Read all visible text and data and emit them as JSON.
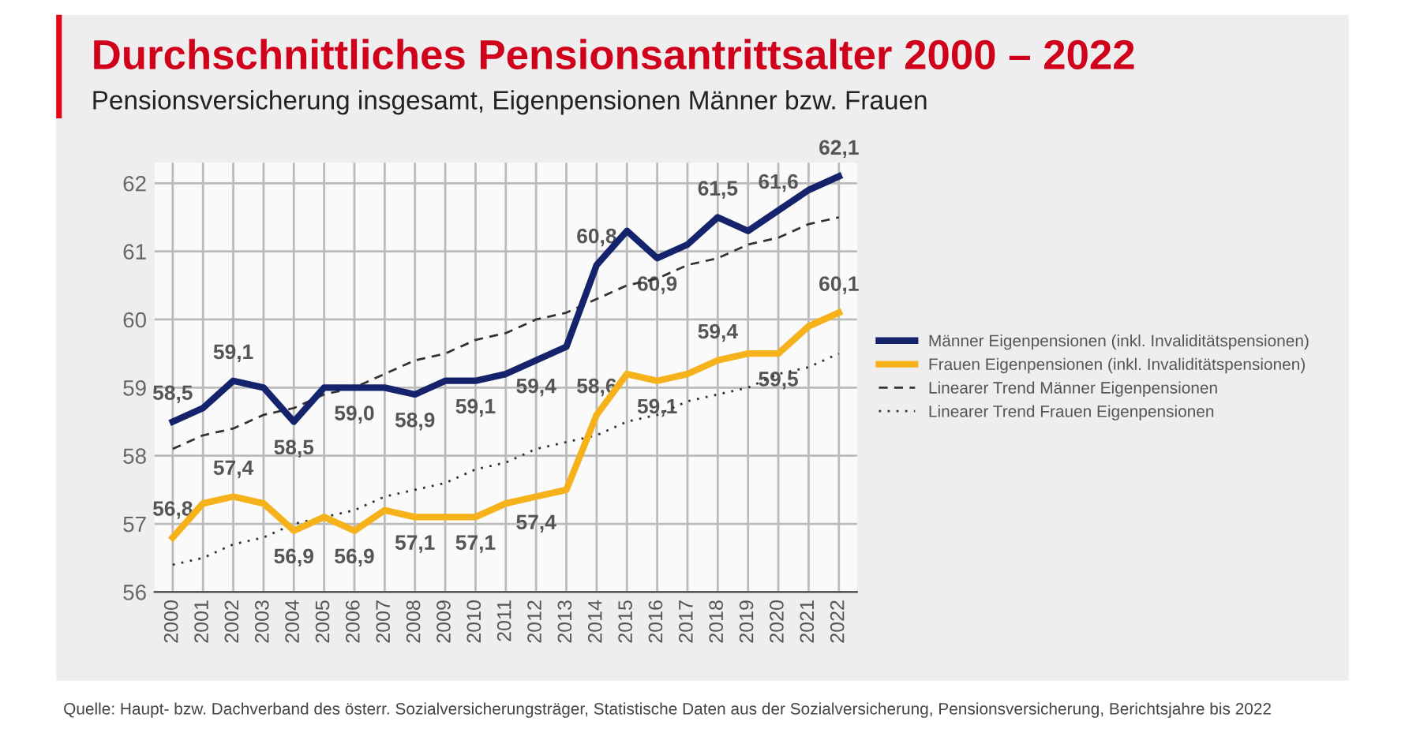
{
  "chart_data": {
    "type": "line",
    "title": "Durchschnittliches Pensionsantrittsalter 2000 – 2022",
    "subtitle": "Pensionsversicherung insgesamt, Eigenpensionen Männer bzw. Frauen",
    "categories": [
      "2000",
      "2001",
      "2002",
      "2003",
      "2004",
      "2005",
      "2006",
      "2007",
      "2008",
      "2009",
      "2010",
      "2011",
      "2012",
      "2013",
      "2014",
      "2015",
      "2016",
      "2017",
      "2018",
      "2019",
      "2020",
      "2021",
      "2022"
    ],
    "series": [
      {
        "name": "Männer Eigenpensionen (inkl. Invaliditätspensionen)",
        "color": "#14236b",
        "line_style": "solid",
        "values": [
          58.5,
          58.7,
          59.1,
          59.0,
          58.5,
          59.0,
          59.0,
          59.0,
          58.9,
          59.1,
          59.1,
          59.2,
          59.4,
          59.6,
          60.8,
          61.3,
          60.9,
          61.1,
          61.5,
          61.3,
          61.6,
          61.9,
          62.1
        ],
        "value_labels": [
          "58,5",
          null,
          "59,1",
          null,
          "58,5",
          null,
          "59,0",
          null,
          "58,9",
          null,
          "59,1",
          null,
          "59,4",
          null,
          "60,8",
          null,
          "60,9",
          null,
          "61,5",
          null,
          "61,6",
          null,
          "62,1"
        ]
      },
      {
        "name": "Frauen Eigenpensionen (inkl. Invaliditätspensionen)",
        "color": "#f5b21b",
        "line_style": "solid",
        "values": [
          56.8,
          57.3,
          57.4,
          57.3,
          56.9,
          57.1,
          56.9,
          57.2,
          57.1,
          57.1,
          57.1,
          57.3,
          57.4,
          57.5,
          58.6,
          59.2,
          59.1,
          59.2,
          59.4,
          59.5,
          59.5,
          59.9,
          60.1
        ],
        "value_labels": [
          "56,8",
          null,
          "57,4",
          null,
          "56,9",
          null,
          "56,9",
          null,
          "57,1",
          null,
          "57,1",
          null,
          "57,4",
          null,
          "58,6",
          null,
          "59,1",
          null,
          "59,4",
          null,
          "59,5",
          null,
          "60,1"
        ]
      },
      {
        "name": "Linearer Trend Männer Eigenpensionen",
        "color": "#333333",
        "line_style": "dashed",
        "values": [
          58.1,
          58.3,
          58.4,
          58.6,
          58.7,
          58.9,
          59.0,
          59.2,
          59.4,
          59.5,
          59.7,
          59.8,
          60.0,
          60.1,
          60.3,
          60.5,
          60.6,
          60.8,
          60.9,
          61.1,
          61.2,
          61.4,
          61.5
        ]
      },
      {
        "name": "Linearer Trend Frauen Eigenpensionen",
        "color": "#333333",
        "line_style": "dotted",
        "values": [
          56.4,
          56.5,
          56.7,
          56.8,
          57.0,
          57.1,
          57.2,
          57.4,
          57.5,
          57.6,
          57.8,
          57.9,
          58.1,
          58.2,
          58.3,
          58.5,
          58.6,
          58.8,
          58.9,
          59.0,
          59.2,
          59.3,
          59.5
        ]
      }
    ],
    "ylim": [
      56,
      62.3
    ],
    "yticks": [
      56,
      57,
      58,
      59,
      60,
      61,
      62
    ],
    "grid": true,
    "legend": "right",
    "annotations": [
      "Quelle: Haupt- bzw. Dachverband des österr. Sozialversicherungsträger, Statistische Daten aus der Sozialversicherung, Pensionsversicherung, Berichtsjahre bis 2022"
    ]
  }
}
